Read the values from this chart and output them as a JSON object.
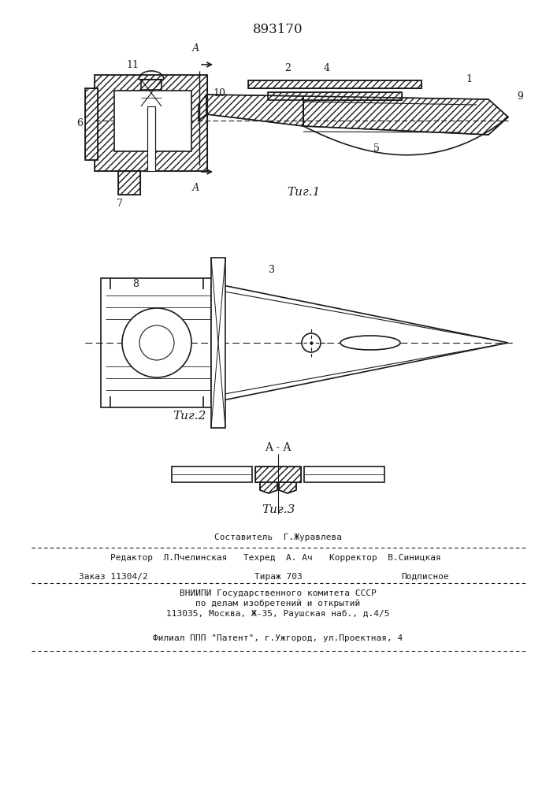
{
  "patent_number": "893170",
  "fig1_caption": "Τиг.1",
  "fig2_caption": "Τиг.2",
  "fig3_caption": "Τиг.3",
  "section_label": "A - A",
  "background_color": "#ffffff",
  "line_color": "#1a1a1a",
  "footer_items": [
    [
      353,
      318,
      "Составитель  Г.Журавлева",
      8,
      "center"
    ],
    [
      140,
      292,
      "Редактор  Л.Пчелинская",
      8,
      "left"
    ],
    [
      353,
      292,
      "Техред  А. Ач",
      8,
      "center"
    ],
    [
      560,
      292,
      "Корректор  В.Синицкая",
      8,
      "right"
    ],
    [
      100,
      268,
      "Заказ 11304/2",
      8,
      "left"
    ],
    [
      353,
      268,
      "Тираж 703",
      8,
      "center"
    ],
    [
      570,
      268,
      "Подписное",
      8,
      "right"
    ],
    [
      353,
      247,
      "ВНИИПИ Государственного комитета СССР",
      8,
      "center"
    ],
    [
      353,
      234,
      "по делам изобретений и открытий",
      8,
      "center"
    ],
    [
      353,
      221,
      "113035, Москва, Ж-35, Раушская наб., д.4/5",
      8,
      "center"
    ],
    [
      353,
      190,
      "Филиал ППП \"Патент\", г.Ужгород, ул.Проектная, 4",
      8,
      "center"
    ]
  ]
}
